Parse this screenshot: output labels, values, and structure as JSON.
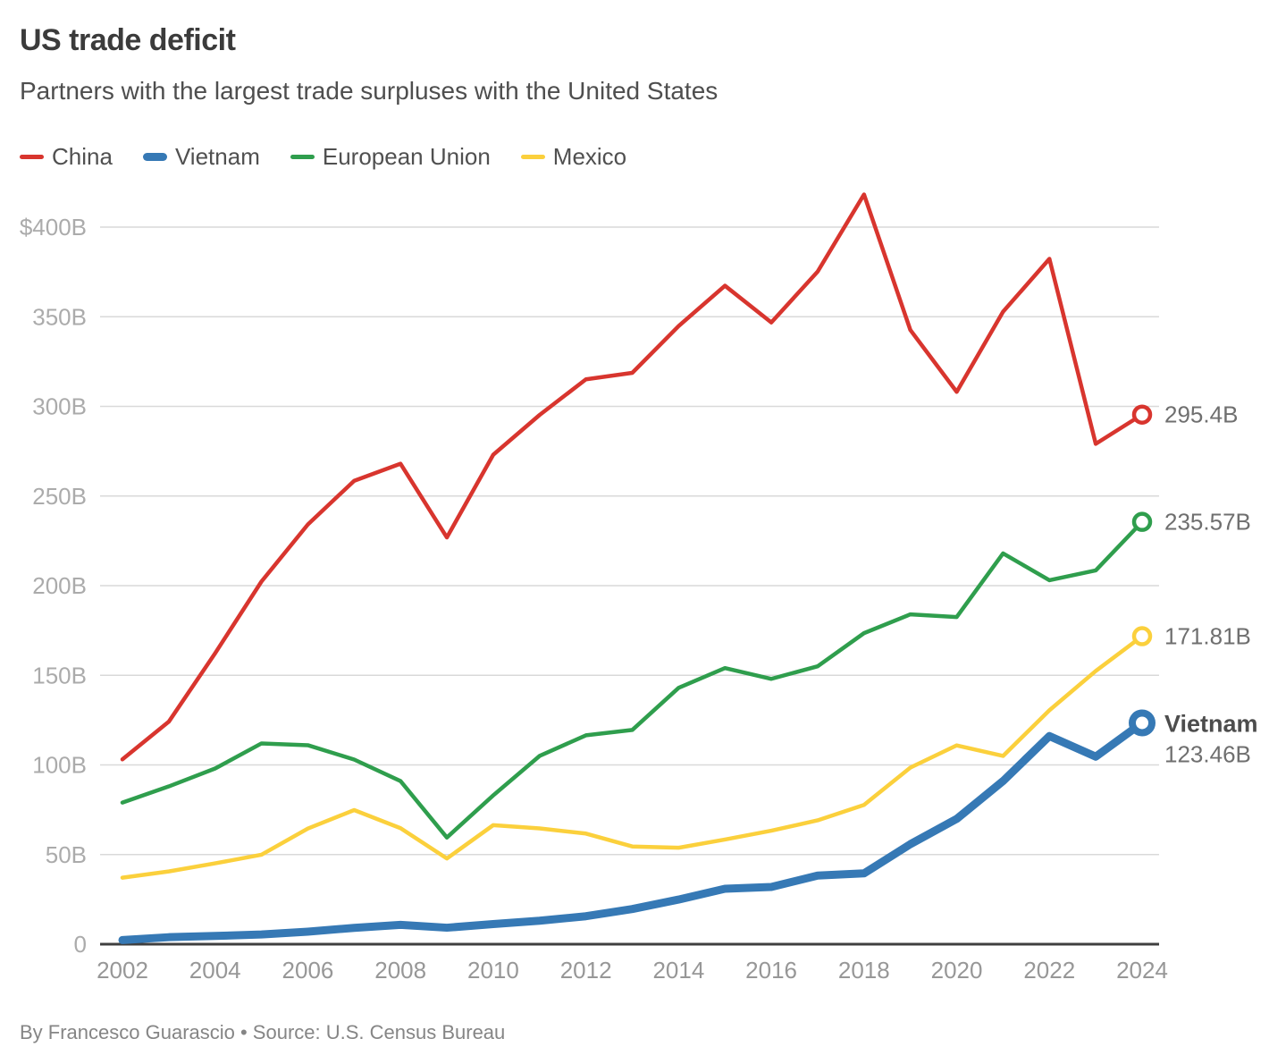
{
  "header": {
    "title": "US trade deficit",
    "subtitle": "Partners with the largest trade surpluses with the United States"
  },
  "footer": {
    "byline": "By Francesco Guarascio • Source: U.S. Census Bureau"
  },
  "colors": {
    "china": "#d8352e",
    "vietnam": "#3679b5",
    "european_union": "#2f9e4d",
    "mexico": "#fbd03c",
    "gridline": "#d9d9d9",
    "axis_line": "#3f3f3f",
    "y_tick_label": "#ababab",
    "x_tick_label": "#979797",
    "end_value_label": "#6f6f6f",
    "end_series_name_label": "#4d4d4d"
  },
  "chart_data": {
    "type": "line",
    "title": "US trade deficit",
    "subtitle": "Partners with the largest trade surpluses with the United States",
    "xlabel": "",
    "ylabel": "",
    "unit": "billion US dollars",
    "grid": "horizontal",
    "legend_position": "top",
    "ylim": [
      0,
      420
    ],
    "yticks": [
      0,
      50,
      100,
      150,
      200,
      250,
      300,
      350,
      400
    ],
    "ytick_labels": [
      "0",
      "50B",
      "100B",
      "150B",
      "200B",
      "250B",
      "300B",
      "350B",
      "$400B"
    ],
    "xticks": [
      2002,
      2004,
      2006,
      2008,
      2010,
      2012,
      2014,
      2016,
      2018,
      2020,
      2022,
      2024
    ],
    "x": [
      2002,
      2003,
      2004,
      2005,
      2006,
      2007,
      2008,
      2009,
      2010,
      2011,
      2012,
      2013,
      2014,
      2015,
      2016,
      2017,
      2018,
      2019,
      2020,
      2021,
      2022,
      2023,
      2024
    ],
    "series": [
      {
        "name": "China",
        "color_key": "china",
        "line_width": 4.5,
        "marker": "open-circle",
        "end_label": "295.4B",
        "values": [
          103.1,
          124.1,
          162.3,
          202.3,
          234.1,
          258.5,
          268.0,
          226.9,
          273.0,
          295.2,
          315.1,
          318.7,
          344.8,
          367.3,
          346.8,
          375.2,
          418.2,
          342.6,
          308.1,
          352.8,
          382.3,
          279.1,
          295.4
        ]
      },
      {
        "name": "Vietnam",
        "color_key": "vietnam",
        "line_width": 9,
        "marker": "open-circle-thick",
        "end_label": "123.46B",
        "end_label_name": "Vietnam",
        "values": [
          2.3,
          3.9,
          4.6,
          5.4,
          7.0,
          9.1,
          10.8,
          9.2,
          11.2,
          13.1,
          15.6,
          19.6,
          24.9,
          30.9,
          31.9,
          38.3,
          39.5,
          55.8,
          69.9,
          91.0,
          116.1,
          104.6,
          123.46
        ]
      },
      {
        "name": "European Union",
        "color_key": "european_union",
        "line_width": 4.5,
        "marker": "open-circle",
        "end_label": "235.57B",
        "values": [
          79,
          88,
          98,
          112,
          111,
          103,
          91,
          59.5,
          83,
          105,
          116.5,
          119.5,
          143,
          154,
          148,
          155,
          173.5,
          184,
          182.5,
          218,
          203,
          208.5,
          235.57
        ]
      },
      {
        "name": "Mexico",
        "color_key": "mexico",
        "line_width": 4.5,
        "marker": "open-circle",
        "end_label": "171.81B",
        "values": [
          37.1,
          40.6,
          45.1,
          49.9,
          64.5,
          74.8,
          64.7,
          47.8,
          66.4,
          64.6,
          61.7,
          54.5,
          53.8,
          58.4,
          63.3,
          69.1,
          77.7,
          98.5,
          110.9,
          105.0,
          130.5,
          152.4,
          171.81
        ]
      }
    ]
  }
}
